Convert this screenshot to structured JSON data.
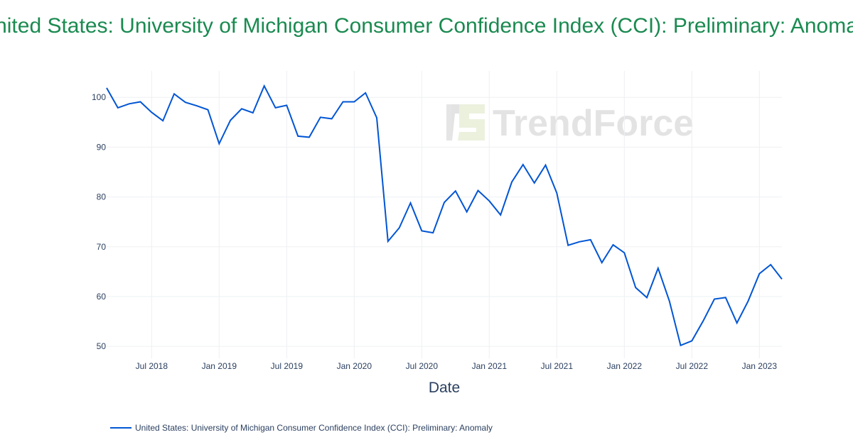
{
  "chart_data": {
    "type": "line",
    "title": "United States: University of Michigan Consumer Confidence Index (CCI): Preliminary: Anomaly",
    "xlabel": "Date",
    "ylabel": "",
    "ylim": [
      47.6,
      105.3
    ],
    "yticks": [
      50,
      60,
      70,
      80,
      90,
      100
    ],
    "xticks": [
      "Jul 2018",
      "Jan 2019",
      "Jul 2019",
      "Jan 2020",
      "Jul 2020",
      "Jan 2021",
      "Jul 2021",
      "Jan 2022",
      "Jul 2022",
      "Jan 2023"
    ],
    "grid": true,
    "legend_placement": "bottom-left",
    "colors": {
      "series": "#0055d4",
      "title": "#1a8a50"
    },
    "series": [
      {
        "name": "United States: University of Michigan Consumer Confidence Index (CCI): Preliminary: Anomaly",
        "x": [
          "2018-03",
          "2018-04",
          "2018-05",
          "2018-06",
          "2018-07",
          "2018-08",
          "2018-09",
          "2018-10",
          "2018-11",
          "2018-12",
          "2019-01",
          "2019-02",
          "2019-03",
          "2019-04",
          "2019-05",
          "2019-06",
          "2019-07",
          "2019-08",
          "2019-09",
          "2019-10",
          "2019-11",
          "2019-12",
          "2020-01",
          "2020-02",
          "2020-03",
          "2020-04",
          "2020-05",
          "2020-06",
          "2020-07",
          "2020-08",
          "2020-09",
          "2020-10",
          "2020-11",
          "2020-12",
          "2021-01",
          "2021-02",
          "2021-03",
          "2021-04",
          "2021-05",
          "2021-06",
          "2021-07",
          "2021-08",
          "2021-09",
          "2021-10",
          "2021-11",
          "2021-12",
          "2022-01",
          "2022-02",
          "2022-03",
          "2022-04",
          "2022-05",
          "2022-06",
          "2022-07",
          "2022-08",
          "2022-09",
          "2022-10",
          "2022-11",
          "2022-12",
          "2023-01",
          "2023-02",
          "2023-03"
        ],
        "values": [
          101.9,
          97.9,
          98.7,
          99.1,
          97.0,
          95.3,
          100.7,
          99.0,
          98.3,
          97.5,
          90.7,
          95.4,
          97.7,
          96.9,
          102.3,
          97.9,
          98.4,
          92.2,
          92.0,
          96.0,
          95.7,
          99.1,
          99.1,
          100.9,
          95.9,
          71.1,
          73.8,
          78.8,
          73.2,
          72.8,
          78.9,
          81.2,
          77.0,
          81.3,
          79.2,
          76.4,
          83.0,
          86.5,
          82.8,
          86.4,
          80.8,
          70.3,
          71.0,
          71.4,
          66.8,
          70.4,
          68.8,
          61.8,
          59.8,
          65.7,
          59.1,
          50.2,
          51.1,
          55.1,
          59.5,
          59.8,
          54.7,
          59.1,
          64.6,
          66.4,
          63.5
        ]
      }
    ]
  },
  "watermark": {
    "text": "TrendForce"
  }
}
